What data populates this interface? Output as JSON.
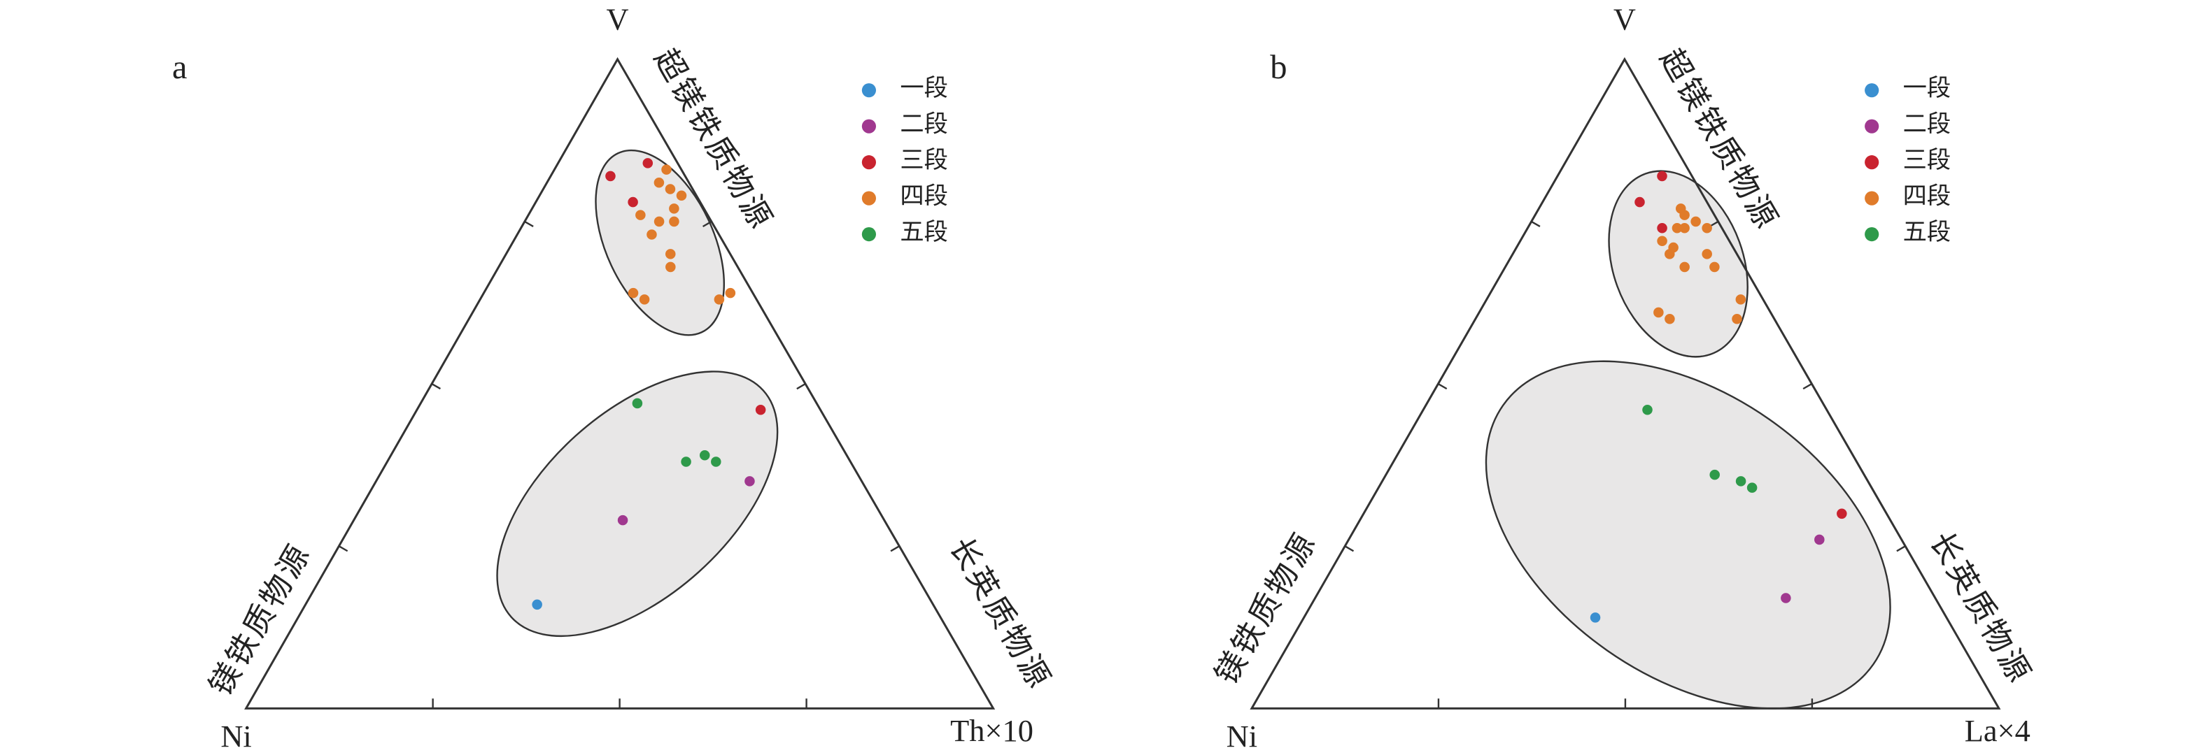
{
  "chart_data": [
    {
      "type": "ternary",
      "panel_label": "a",
      "vertices": {
        "top": "V",
        "left": "Ni",
        "right": "Th×10"
      },
      "side_labels": {
        "upper_right": "超镁铁质物源",
        "lower_left": "镁铁质物源",
        "lower_right": "长英质物源"
      },
      "lim": [
        0,
        100
      ],
      "ticks": [
        25,
        50,
        75
      ],
      "legend": "upper right",
      "series": [
        {
          "name": "一段",
          "color": "#3a8fd0",
          "values": [
            [
              16,
              53,
              31
            ]
          ]
        },
        {
          "name": "二段",
          "color": "#a0388f",
          "values": [
            [
              35,
              15,
              50
            ],
            [
              29,
              35,
              36
            ]
          ]
        },
        {
          "name": "三段",
          "color": "#c9232f",
          "values": [
            [
              82,
              10,
              8
            ],
            [
              84,
              4,
              12
            ],
            [
              78,
              9,
              13
            ],
            [
              46,
              8,
              46
            ]
          ]
        },
        {
          "name": "四段",
          "color": "#e07b2a",
          "values": [
            [
              83,
              2,
              15
            ],
            [
              81,
              4,
              15
            ],
            [
              79,
              2,
              19
            ],
            [
              80,
              3,
              17
            ],
            [
              76,
              9,
              15
            ],
            [
              75,
              7,
              18
            ],
            [
              77,
              4,
              19
            ],
            [
              75,
              5,
              20
            ],
            [
              73,
              9,
              18
            ],
            [
              70,
              8,
              22
            ],
            [
              68,
              9,
              23
            ],
            [
              64,
              16,
              20
            ],
            [
              63,
              15,
              22
            ],
            [
              63,
              5,
              32
            ],
            [
              64,
              3,
              33
            ]
          ]
        },
        {
          "name": "五段",
          "color": "#2e9a4a",
          "values": [
            [
              47,
              24,
              29
            ],
            [
              38,
              22,
              40
            ],
            [
              39,
              19,
              42
            ],
            [
              38,
              18,
              44
            ]
          ]
        }
      ]
    },
    {
      "type": "ternary",
      "panel_label": "b",
      "vertices": {
        "top": "V",
        "left": "Ni",
        "right": "La×4"
      },
      "side_labels": {
        "upper_right": "超镁铁质物源",
        "lower_left": "镁铁质物源",
        "lower_right": "长英质物源"
      },
      "lim": [
        0,
        100
      ],
      "ticks": [
        25,
        50,
        75
      ],
      "legend": "upper right",
      "series": [
        {
          "name": "一段",
          "color": "#3a8fd0",
          "values": [
            [
              14,
              47,
              39
            ]
          ]
        },
        {
          "name": "二段",
          "color": "#a0388f",
          "values": [
            [
              26,
              11,
              63
            ],
            [
              17,
              20,
              63
            ]
          ]
        },
        {
          "name": "三段",
          "color": "#c9232f",
          "values": [
            [
              82,
              4,
              14
            ],
            [
              78,
              9,
              13
            ],
            [
              74,
              8,
              18
            ],
            [
              30,
              6,
              64
            ]
          ]
        },
        {
          "name": "四段",
          "color": "#e07b2a",
          "values": [
            [
              77,
              4,
              19
            ],
            [
              76,
              4,
              20
            ],
            [
              75,
              3,
              22
            ],
            [
              74,
              6,
              20
            ],
            [
              74,
              5,
              21
            ],
            [
              74,
              2,
              24
            ],
            [
              72,
              9,
              19
            ],
            [
              71,
              8,
              21
            ],
            [
              70,
              9,
              21
            ],
            [
              70,
              4,
              26
            ],
            [
              68,
              4,
              28
            ],
            [
              68,
              8,
              24
            ],
            [
              63,
              3,
              34
            ],
            [
              60,
              5,
              35
            ],
            [
              61,
              15,
              24
            ],
            [
              60,
              14,
              26
            ]
          ]
        },
        {
          "name": "五段",
          "color": "#2e9a4a",
          "values": [
            [
              46,
              24,
              30
            ],
            [
              36,
              20,
              44
            ],
            [
              35,
              17,
              48
            ],
            [
              34,
              16,
              50
            ]
          ]
        }
      ]
    }
  ]
}
